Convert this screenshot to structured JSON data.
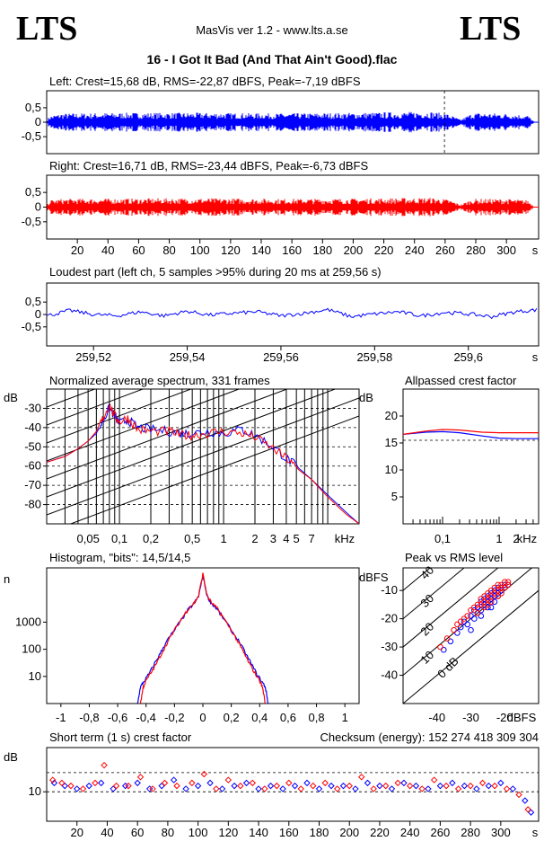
{
  "header": {
    "logo_left": "LTS",
    "logo_right": "LTS",
    "app_title": "MasVis ver 1.2 - www.lts.a.se",
    "file_title": "16 - I Got It Bad (And That Ain't Good).flac"
  },
  "colors": {
    "left": "#0000ff",
    "right": "#ff0000",
    "background": "#ffffff",
    "axis": "#000000"
  },
  "chart_data": [
    {
      "id": "left-waveform",
      "type": "area",
      "title": "Left: Crest=15,68 dB, RMS=-22,87 dBFS, Peak=-7,19 dBFS",
      "series": [
        {
          "name": "left",
          "color": "#0000ff"
        }
      ],
      "ylim": [
        -1,
        1
      ],
      "xlim": [
        0,
        321
      ],
      "yticks": [
        "0,5",
        "0",
        "-0,5"
      ],
      "marker_x": 259.56,
      "envelope": [
        {
          "t": 0,
          "peak": 0.05
        },
        {
          "t": 2,
          "peak": 0.2
        },
        {
          "t": 10,
          "peak": 0.28
        },
        {
          "t": 50,
          "peak": 0.3
        },
        {
          "t": 100,
          "peak": 0.3
        },
        {
          "t": 150,
          "peak": 0.28
        },
        {
          "t": 200,
          "peak": 0.3
        },
        {
          "t": 250,
          "peak": 0.34
        },
        {
          "t": 262,
          "peak": 0.26
        },
        {
          "t": 270,
          "peak": 0.08
        },
        {
          "t": 278,
          "peak": 0.3
        },
        {
          "t": 300,
          "peak": 0.28
        },
        {
          "t": 314,
          "peak": 0.22
        },
        {
          "t": 318,
          "peak": 0.02
        },
        {
          "t": 321,
          "peak": 0.0
        }
      ]
    },
    {
      "id": "right-waveform",
      "type": "area",
      "title": "Right: Crest=16,71 dB, RMS=-23,44 dBFS, Peak=-6,73 dBFS",
      "series": [
        {
          "name": "right",
          "color": "#ff0000"
        }
      ],
      "ylim": [
        -1,
        1
      ],
      "xlim": [
        0,
        321
      ],
      "yticks": [
        "0,5",
        "0",
        "-0,5"
      ],
      "xticks": [
        "20",
        "40",
        "60",
        "80",
        "100",
        "120",
        "140",
        "160",
        "180",
        "200",
        "220",
        "240",
        "260",
        "280",
        "300",
        "s"
      ],
      "envelope": [
        {
          "t": 0,
          "peak": 0.05
        },
        {
          "t": 2,
          "peak": 0.22
        },
        {
          "t": 10,
          "peak": 0.26
        },
        {
          "t": 50,
          "peak": 0.27
        },
        {
          "t": 100,
          "peak": 0.28
        },
        {
          "t": 150,
          "peak": 0.26
        },
        {
          "t": 200,
          "peak": 0.27
        },
        {
          "t": 250,
          "peak": 0.3
        },
        {
          "t": 262,
          "peak": 0.24
        },
        {
          "t": 270,
          "peak": 0.08
        },
        {
          "t": 278,
          "peak": 0.26
        },
        {
          "t": 300,
          "peak": 0.26
        },
        {
          "t": 314,
          "peak": 0.22
        },
        {
          "t": 318,
          "peak": 0.02
        },
        {
          "t": 321,
          "peak": 0.0
        }
      ]
    },
    {
      "id": "loudest-part",
      "type": "line",
      "title": "Loudest part (left  ch, 5 samples >95% during 20 ms at 259,56 s)",
      "series": [
        {
          "name": "left",
          "color": "#0000ff"
        }
      ],
      "xlim": [
        259.51,
        259.615
      ],
      "ylim": [
        -1,
        1
      ],
      "yticks": [
        "0,5",
        "0",
        "-0,5"
      ],
      "xticks": [
        "259,52",
        "259,54",
        "259,56",
        "259,58",
        "259,6",
        "s"
      ],
      "x": [
        259.51,
        259.515,
        259.52,
        259.525,
        259.53,
        259.535,
        259.54,
        259.545,
        259.55,
        259.555,
        259.56,
        259.565,
        259.57,
        259.575,
        259.58,
        259.585,
        259.59,
        259.595,
        259.6,
        259.605,
        259.61,
        259.615
      ],
      "y": [
        -0.05,
        0.15,
        0.0,
        -0.05,
        0.1,
        -0.05,
        0.12,
        -0.02,
        0.05,
        0.1,
        -0.05,
        0.05,
        0.18,
        -0.08,
        0.02,
        0.1,
        -0.05,
        0.08,
        0.02,
        -0.08,
        0.1,
        0.18
      ]
    },
    {
      "id": "spectrum",
      "type": "line",
      "title": "Normalized average spectrum, 331 frames",
      "xlabel": "kHz",
      "ylabel": "dB",
      "xscale": "log",
      "xlim": [
        0.02,
        20
      ],
      "ylim": [
        -90,
        -20
      ],
      "yticks": [
        "-30",
        "-40",
        "-50",
        "-60",
        "-70",
        "-80"
      ],
      "xticks": [
        "0,05",
        "0,1",
        "0,2",
        "0,5",
        "1",
        "2",
        "3",
        "4",
        "5",
        "7",
        "kHz"
      ],
      "series": [
        {
          "name": "left",
          "color": "#0000ff",
          "x": [
            0.02,
            0.03,
            0.04,
            0.05,
            0.06,
            0.07,
            0.08,
            0.09,
            0.1,
            0.12,
            0.15,
            0.2,
            0.3,
            0.4,
            0.5,
            0.7,
            1,
            1.5,
            2,
            3,
            4,
            5,
            7,
            10,
            15,
            20
          ],
          "y": [
            -58,
            -55,
            -51,
            -47,
            -43,
            -36,
            -30,
            -34,
            -38,
            -36,
            -40,
            -41,
            -42,
            -43,
            -43,
            -42,
            -43,
            -41,
            -44,
            -50,
            -56,
            -60,
            -67,
            -75,
            -84,
            -90
          ]
        },
        {
          "name": "right",
          "color": "#ff0000",
          "x": [
            0.02,
            0.03,
            0.04,
            0.05,
            0.06,
            0.07,
            0.08,
            0.09,
            0.1,
            0.12,
            0.15,
            0.2,
            0.3,
            0.4,
            0.5,
            0.7,
            1,
            1.5,
            2,
            3,
            4,
            5,
            7,
            10,
            15,
            20
          ],
          "y": [
            -58,
            -55,
            -51,
            -47,
            -42,
            -35,
            -28,
            -34,
            -37,
            -35,
            -41,
            -42,
            -42,
            -44,
            -44,
            -43,
            -42,
            -43,
            -45,
            -51,
            -56,
            -61,
            -67,
            -76,
            -85,
            -90
          ]
        }
      ]
    },
    {
      "id": "allpassed-crest",
      "type": "line",
      "title": "Allpassed crest factor",
      "xlabel": "kHz",
      "ylabel": "dB",
      "xscale": "log",
      "xlim": [
        0.02,
        5
      ],
      "ylim": [
        0,
        25
      ],
      "yticks": [
        "20",
        "15",
        "10",
        "5"
      ],
      "xticks": [
        "0,1",
        "1",
        "2",
        "kHz"
      ],
      "reference_db": 15.5,
      "series": [
        {
          "name": "left",
          "color": "#0000ff",
          "x": [
            0.02,
            0.05,
            0.1,
            0.2,
            0.5,
            1,
            2,
            5
          ],
          "y": [
            16.6,
            17.0,
            17.1,
            16.9,
            16.3,
            15.9,
            15.8,
            15.8
          ]
        },
        {
          "name": "right",
          "color": "#ff0000",
          "x": [
            0.02,
            0.05,
            0.1,
            0.2,
            0.5,
            1,
            2,
            5
          ],
          "y": [
            16.6,
            17.2,
            17.5,
            17.4,
            17.0,
            16.9,
            16.9,
            16.9
          ]
        }
      ]
    },
    {
      "id": "histogram",
      "type": "line",
      "title": "Histogram, \"bits\": 14,5/14,5",
      "ylabel": "n",
      "yscale": "log",
      "xlim": [
        -1.1,
        1.1
      ],
      "ylim": [
        1,
        100000
      ],
      "yticks": [
        "1000",
        "100",
        "10"
      ],
      "xticks": [
        "-1",
        "-0,8",
        "-0,6",
        "-0,4",
        "-0,2",
        "0",
        "0,2",
        "0,4",
        "0,6",
        "0,8",
        "1"
      ],
      "series": [
        {
          "name": "left",
          "color": "#0000ff",
          "x": [
            -0.46,
            -0.44,
            -0.42,
            -0.38,
            -0.34,
            -0.3,
            -0.26,
            -0.2,
            -0.14,
            -0.1,
            -0.06,
            -0.03,
            0.0,
            0.03,
            0.06,
            0.1,
            0.14,
            0.2,
            0.26,
            0.3,
            0.34,
            0.38,
            0.42,
            0.44,
            0.46
          ],
          "y": [
            1,
            4,
            6,
            12,
            30,
            70,
            180,
            500,
            1500,
            3000,
            5000,
            9000,
            50000,
            9000,
            5000,
            3000,
            1500,
            500,
            180,
            70,
            30,
            12,
            6,
            4,
            1
          ]
        },
        {
          "name": "right",
          "color": "#ff0000",
          "x": [
            -0.44,
            -0.42,
            -0.4,
            -0.36,
            -0.32,
            -0.28,
            -0.24,
            -0.2,
            -0.14,
            -0.1,
            -0.06,
            -0.03,
            0.0,
            0.03,
            0.06,
            0.1,
            0.14,
            0.2,
            0.24,
            0.28,
            0.32,
            0.36,
            0.4,
            0.42,
            0.44
          ],
          "y": [
            1,
            4,
            7,
            15,
            35,
            90,
            220,
            500,
            1600,
            3200,
            5200,
            9500,
            60000,
            9500,
            5200,
            3200,
            1600,
            500,
            220,
            90,
            35,
            15,
            7,
            4,
            1
          ]
        }
      ]
    },
    {
      "id": "peak-vs-rms",
      "type": "scatter",
      "title": "Peak vs RMS level",
      "xlabel": "dBFS",
      "ylabel": "dBFS",
      "xlim": [
        -50,
        -10
      ],
      "ylim": [
        -50,
        -2
      ],
      "yticks": [
        "-10",
        "-20",
        "-30",
        "-40"
      ],
      "xticks": [
        "-40",
        "-30",
        "-20",
        "dBFS"
      ],
      "crest_lines": [
        "40",
        "30",
        "20",
        "10",
        "0 dB"
      ],
      "series": [
        {
          "name": "left",
          "color": "#0000ff",
          "x": [
            -38,
            -36,
            -34,
            -33,
            -32,
            -31,
            -30,
            -29,
            -29,
            -28,
            -28,
            -27,
            -27,
            -26,
            -26,
            -25,
            -25,
            -24,
            -24,
            -23,
            -23,
            -22,
            -22,
            -21,
            -21,
            -20,
            -20,
            -19,
            -30,
            -27,
            -25,
            -23,
            -22,
            -24
          ],
          "y": [
            -31,
            -28,
            -25,
            -23,
            -21,
            -22,
            -19,
            -17,
            -20,
            -16,
            -18,
            -14,
            -17,
            -13,
            -15,
            -12,
            -14,
            -11,
            -13,
            -10,
            -12,
            -9,
            -11,
            -9,
            -10,
            -8,
            -9,
            -8,
            -24,
            -19,
            -16,
            -14,
            -12,
            -16
          ]
        },
        {
          "name": "right",
          "color": "#ff0000",
          "x": [
            -39,
            -37,
            -35,
            -34,
            -33,
            -32,
            -31,
            -30,
            -29,
            -28,
            -27,
            -27,
            -26,
            -26,
            -25,
            -25,
            -24,
            -24,
            -23,
            -23,
            -22,
            -22,
            -21,
            -21,
            -20,
            -20,
            -19,
            -19,
            -28,
            -26,
            -24,
            -22,
            -21,
            -25
          ],
          "y": [
            -30,
            -27,
            -24,
            -22,
            -21,
            -20,
            -19,
            -17,
            -16,
            -15,
            -15,
            -13,
            -14,
            -12,
            -13,
            -11,
            -12,
            -10,
            -11,
            -9,
            -10,
            -8,
            -9,
            -8,
            -9,
            -7,
            -8,
            -7,
            -18,
            -16,
            -14,
            -12,
            -11,
            -15
          ]
        }
      ]
    },
    {
      "id": "short-term-crest",
      "type": "scatter",
      "title": "Short term (1 s) crest factor",
      "checksum": "Checksum (energy):   152 274 418 309 304",
      "ylabel": "dB",
      "xlim": [
        0,
        325
      ],
      "ylim": [
        0,
        25
      ],
      "yticks": [
        "10"
      ],
      "xticks": [
        "20",
        "40",
        "60",
        "80",
        "100",
        "120",
        "140",
        "160",
        "180",
        "200",
        "220",
        "240",
        "260",
        "280",
        "300",
        "s"
      ],
      "reference_lines_db": [
        10,
        16.5
      ],
      "series": [
        {
          "name": "left",
          "color": "#0000ff",
          "x": [
            5,
            12,
            20,
            28,
            36,
            44,
            52,
            60,
            68,
            76,
            84,
            92,
            100,
            108,
            116,
            124,
            132,
            140,
            148,
            156,
            164,
            172,
            180,
            188,
            196,
            204,
            212,
            220,
            228,
            236,
            244,
            252,
            260,
            268,
            276,
            284,
            292,
            300,
            308,
            316,
            320
          ],
          "y": [
            13,
            12,
            11,
            12,
            13,
            11,
            12,
            13,
            11,
            12,
            14,
            11,
            12,
            13,
            11,
            12,
            13,
            11,
            12,
            11,
            12,
            13,
            11,
            12,
            12,
            11,
            13,
            12,
            11,
            13,
            12,
            11,
            12,
            13,
            12,
            11,
            12,
            13,
            11,
            7,
            3
          ]
        },
        {
          "name": "right",
          "color": "#ff0000",
          "x": [
            4,
            10,
            16,
            24,
            32,
            38,
            46,
            54,
            62,
            70,
            78,
            86,
            96,
            104,
            112,
            120,
            128,
            136,
            144,
            152,
            160,
            168,
            176,
            184,
            192,
            200,
            208,
            216,
            224,
            232,
            240,
            248,
            256,
            264,
            272,
            280,
            288,
            296,
            304,
            312,
            318
          ],
          "y": [
            14,
            13,
            12,
            11,
            13,
            19,
            12,
            12,
            15,
            11,
            13,
            12,
            13,
            16,
            11,
            14,
            12,
            13,
            11,
            12,
            13,
            11,
            12,
            13,
            11,
            12,
            15,
            11,
            12,
            13,
            12,
            11,
            14,
            12,
            11,
            12,
            13,
            12,
            11,
            9,
            4
          ]
        }
      ]
    }
  ]
}
